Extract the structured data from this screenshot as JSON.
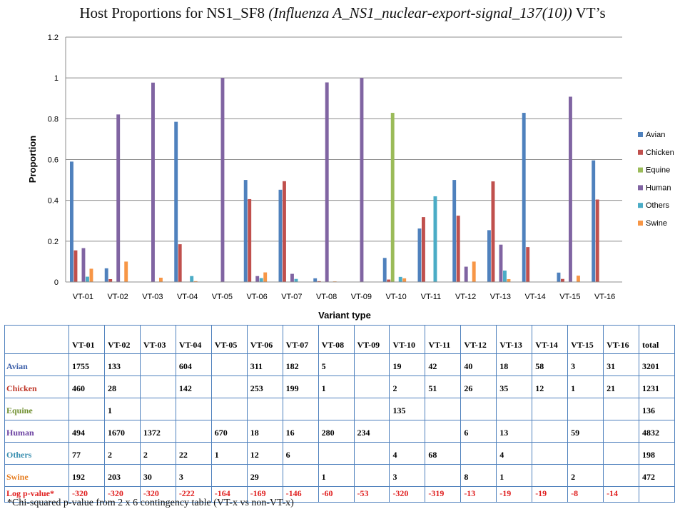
{
  "title": {
    "prefix": "Host Proportions for NS1_SF8 ",
    "italic": "(Influenza A_NS1_nuclear-export-signal_137(10))",
    "suffix": " VT’s"
  },
  "chart_data": {
    "type": "bar",
    "xlabel": "Variant type",
    "ylabel": "Proportion",
    "ylim": [
      0,
      1.2
    ],
    "yticks": [
      "0",
      "0.2",
      "0.4",
      "0.6",
      "0.8",
      "1",
      "1.2"
    ],
    "grid": true,
    "legend_position": "right",
    "categories": [
      "VT-01",
      "VT-02",
      "VT-03",
      "VT-04",
      "VT-05",
      "VT-06",
      "VT-07",
      "VT-08",
      "VT-09",
      "VT-10",
      "VT-11",
      "VT-12",
      "VT-13",
      "VT-14",
      "VT-15",
      "VT-16"
    ],
    "series": [
      {
        "name": "Avian",
        "color": "#4f81bd",
        "values": [
          0.59,
          0.067,
          0,
          0.785,
          0,
          0.5,
          0.452,
          0.018,
          0,
          0.118,
          0.262,
          0.5,
          0.254,
          0.829,
          0.046,
          0.596
        ]
      },
      {
        "name": "Chicken",
        "color": "#c0504d",
        "values": [
          0.155,
          0.014,
          0,
          0.185,
          0,
          0.406,
          0.494,
          0.004,
          0,
          0.012,
          0.318,
          0.325,
          0.493,
          0.171,
          0.015,
          0.404
        ]
      },
      {
        "name": "Equine",
        "color": "#9bbb59",
        "values": [
          0,
          0.001,
          0,
          0,
          0,
          0,
          0,
          0,
          0,
          0.829,
          0,
          0,
          0,
          0,
          0,
          0
        ]
      },
      {
        "name": "Human",
        "color": "#8064a2",
        "values": [
          0.166,
          0.821,
          0.977,
          0,
          1.0,
          0.029,
          0.04,
          0.978,
          1.0,
          0,
          0,
          0.075,
          0.183,
          0,
          0.908,
          0
        ]
      },
      {
        "name": "Others",
        "color": "#4bacc6",
        "values": [
          0.026,
          0.001,
          0.001,
          0.029,
          0.001,
          0.019,
          0.015,
          0,
          0,
          0.025,
          0.42,
          0,
          0.056,
          0,
          0,
          0
        ]
      },
      {
        "name": "Swine",
        "color": "#f79646",
        "values": [
          0.065,
          0.1,
          0.021,
          0.004,
          0,
          0.047,
          0,
          0.003,
          0,
          0.018,
          0,
          0.1,
          0.014,
          0,
          0.031,
          0
        ]
      }
    ]
  },
  "table": {
    "columns": [
      "VT-01",
      "VT-02",
      "VT-03",
      "VT-04",
      "VT-05",
      "VT-06",
      "VT-07",
      "VT-08",
      "VT-09",
      "VT-10",
      "VT-11",
      "VT-12",
      "VT-13",
      "VT-14",
      "VT-15",
      "VT-16",
      "total"
    ],
    "rows": [
      {
        "label": "Avian",
        "color": "#3b5ea8",
        "cells": [
          "1755",
          "133",
          "",
          "604",
          "",
          "311",
          "182",
          "5",
          "",
          "19",
          "42",
          "40",
          "18",
          "58",
          "3",
          "31",
          "3201"
        ]
      },
      {
        "label": "Chicken",
        "color": "#c0392b",
        "cells": [
          "460",
          "28",
          "",
          "142",
          "",
          "253",
          "199",
          "1",
          "",
          "2",
          "51",
          "26",
          "35",
          "12",
          "1",
          "21",
          "1231"
        ]
      },
      {
        "label": "Equine",
        "color": "#6f8f2f",
        "cells": [
          "",
          "1",
          "",
          "",
          "",
          "",
          "",
          "",
          "",
          "135",
          "",
          "",
          "",
          "",
          "",
          "",
          "136"
        ]
      },
      {
        "label": "Human",
        "color": "#6a3fa0",
        "cells": [
          "494",
          "1670",
          "1372",
          "",
          "670",
          "18",
          "16",
          "280",
          "234",
          "",
          "",
          "6",
          "13",
          "",
          "59",
          "",
          "4832"
        ]
      },
      {
        "label": "Others",
        "color": "#3a8fb0",
        "cells": [
          "77",
          "2",
          "2",
          "22",
          "1",
          "12",
          "6",
          "",
          "",
          "4",
          "68",
          "",
          "4",
          "",
          "",
          "",
          "198"
        ]
      },
      {
        "label": "Swine",
        "color": "#e67e22",
        "cells": [
          "192",
          "203",
          "30",
          "3",
          "",
          "29",
          "",
          "1",
          "",
          "3",
          "",
          "8",
          "1",
          "",
          "2",
          "",
          "472"
        ]
      },
      {
        "label": "Log p-value*",
        "color": "#e02020",
        "cells": [
          "-320",
          "-320",
          "-320",
          "-222",
          "-164",
          "-169",
          "-146",
          "-60",
          "-53",
          "-320",
          "-319",
          "-13",
          "-19",
          "-19",
          "-8",
          "-14",
          ""
        ]
      }
    ]
  },
  "footnote": "*Chi-squared p-value from 2 x 6 contingency table (VT-x vs non-VT-x)"
}
